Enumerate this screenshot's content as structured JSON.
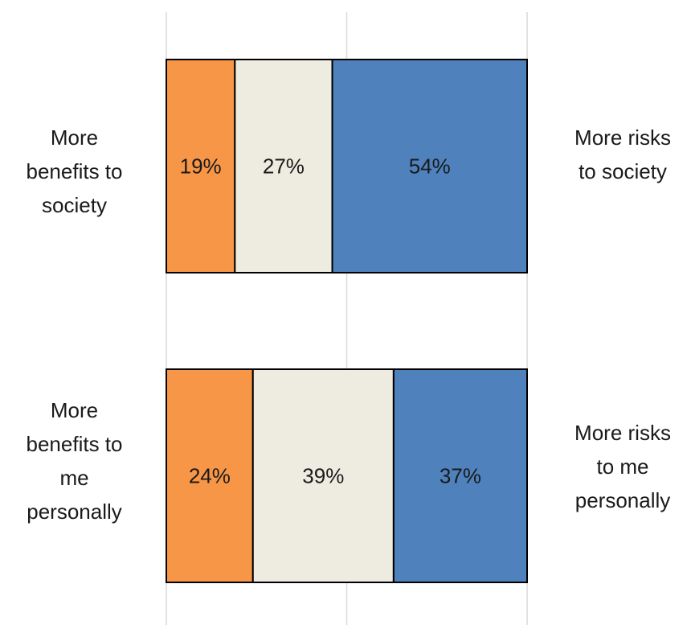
{
  "chart_data": {
    "type": "bar",
    "orientation": "horizontal",
    "stacked": true,
    "normalized_to": 100,
    "grid": true,
    "categories": [
      {
        "left_label_lines": [
          "More",
          "benefits to",
          "society"
        ],
        "right_label_lines": [
          "More risks",
          "to society"
        ]
      },
      {
        "left_label_lines": [
          "More",
          "benefits to",
          "me",
          "personally"
        ],
        "right_label_lines": [
          "More risks",
          "to me",
          "personally"
        ]
      }
    ],
    "series": [
      {
        "color": "#F79646",
        "values": [
          19,
          24
        ],
        "labels": [
          "19%",
          "24%"
        ]
      },
      {
        "color": "#EEEBE0",
        "values": [
          27,
          39
        ],
        "labels": [
          "27%",
          "39%"
        ]
      },
      {
        "color": "#4F81BD",
        "values": [
          54,
          37
        ],
        "labels": [
          "54%",
          "37%"
        ]
      }
    ]
  }
}
